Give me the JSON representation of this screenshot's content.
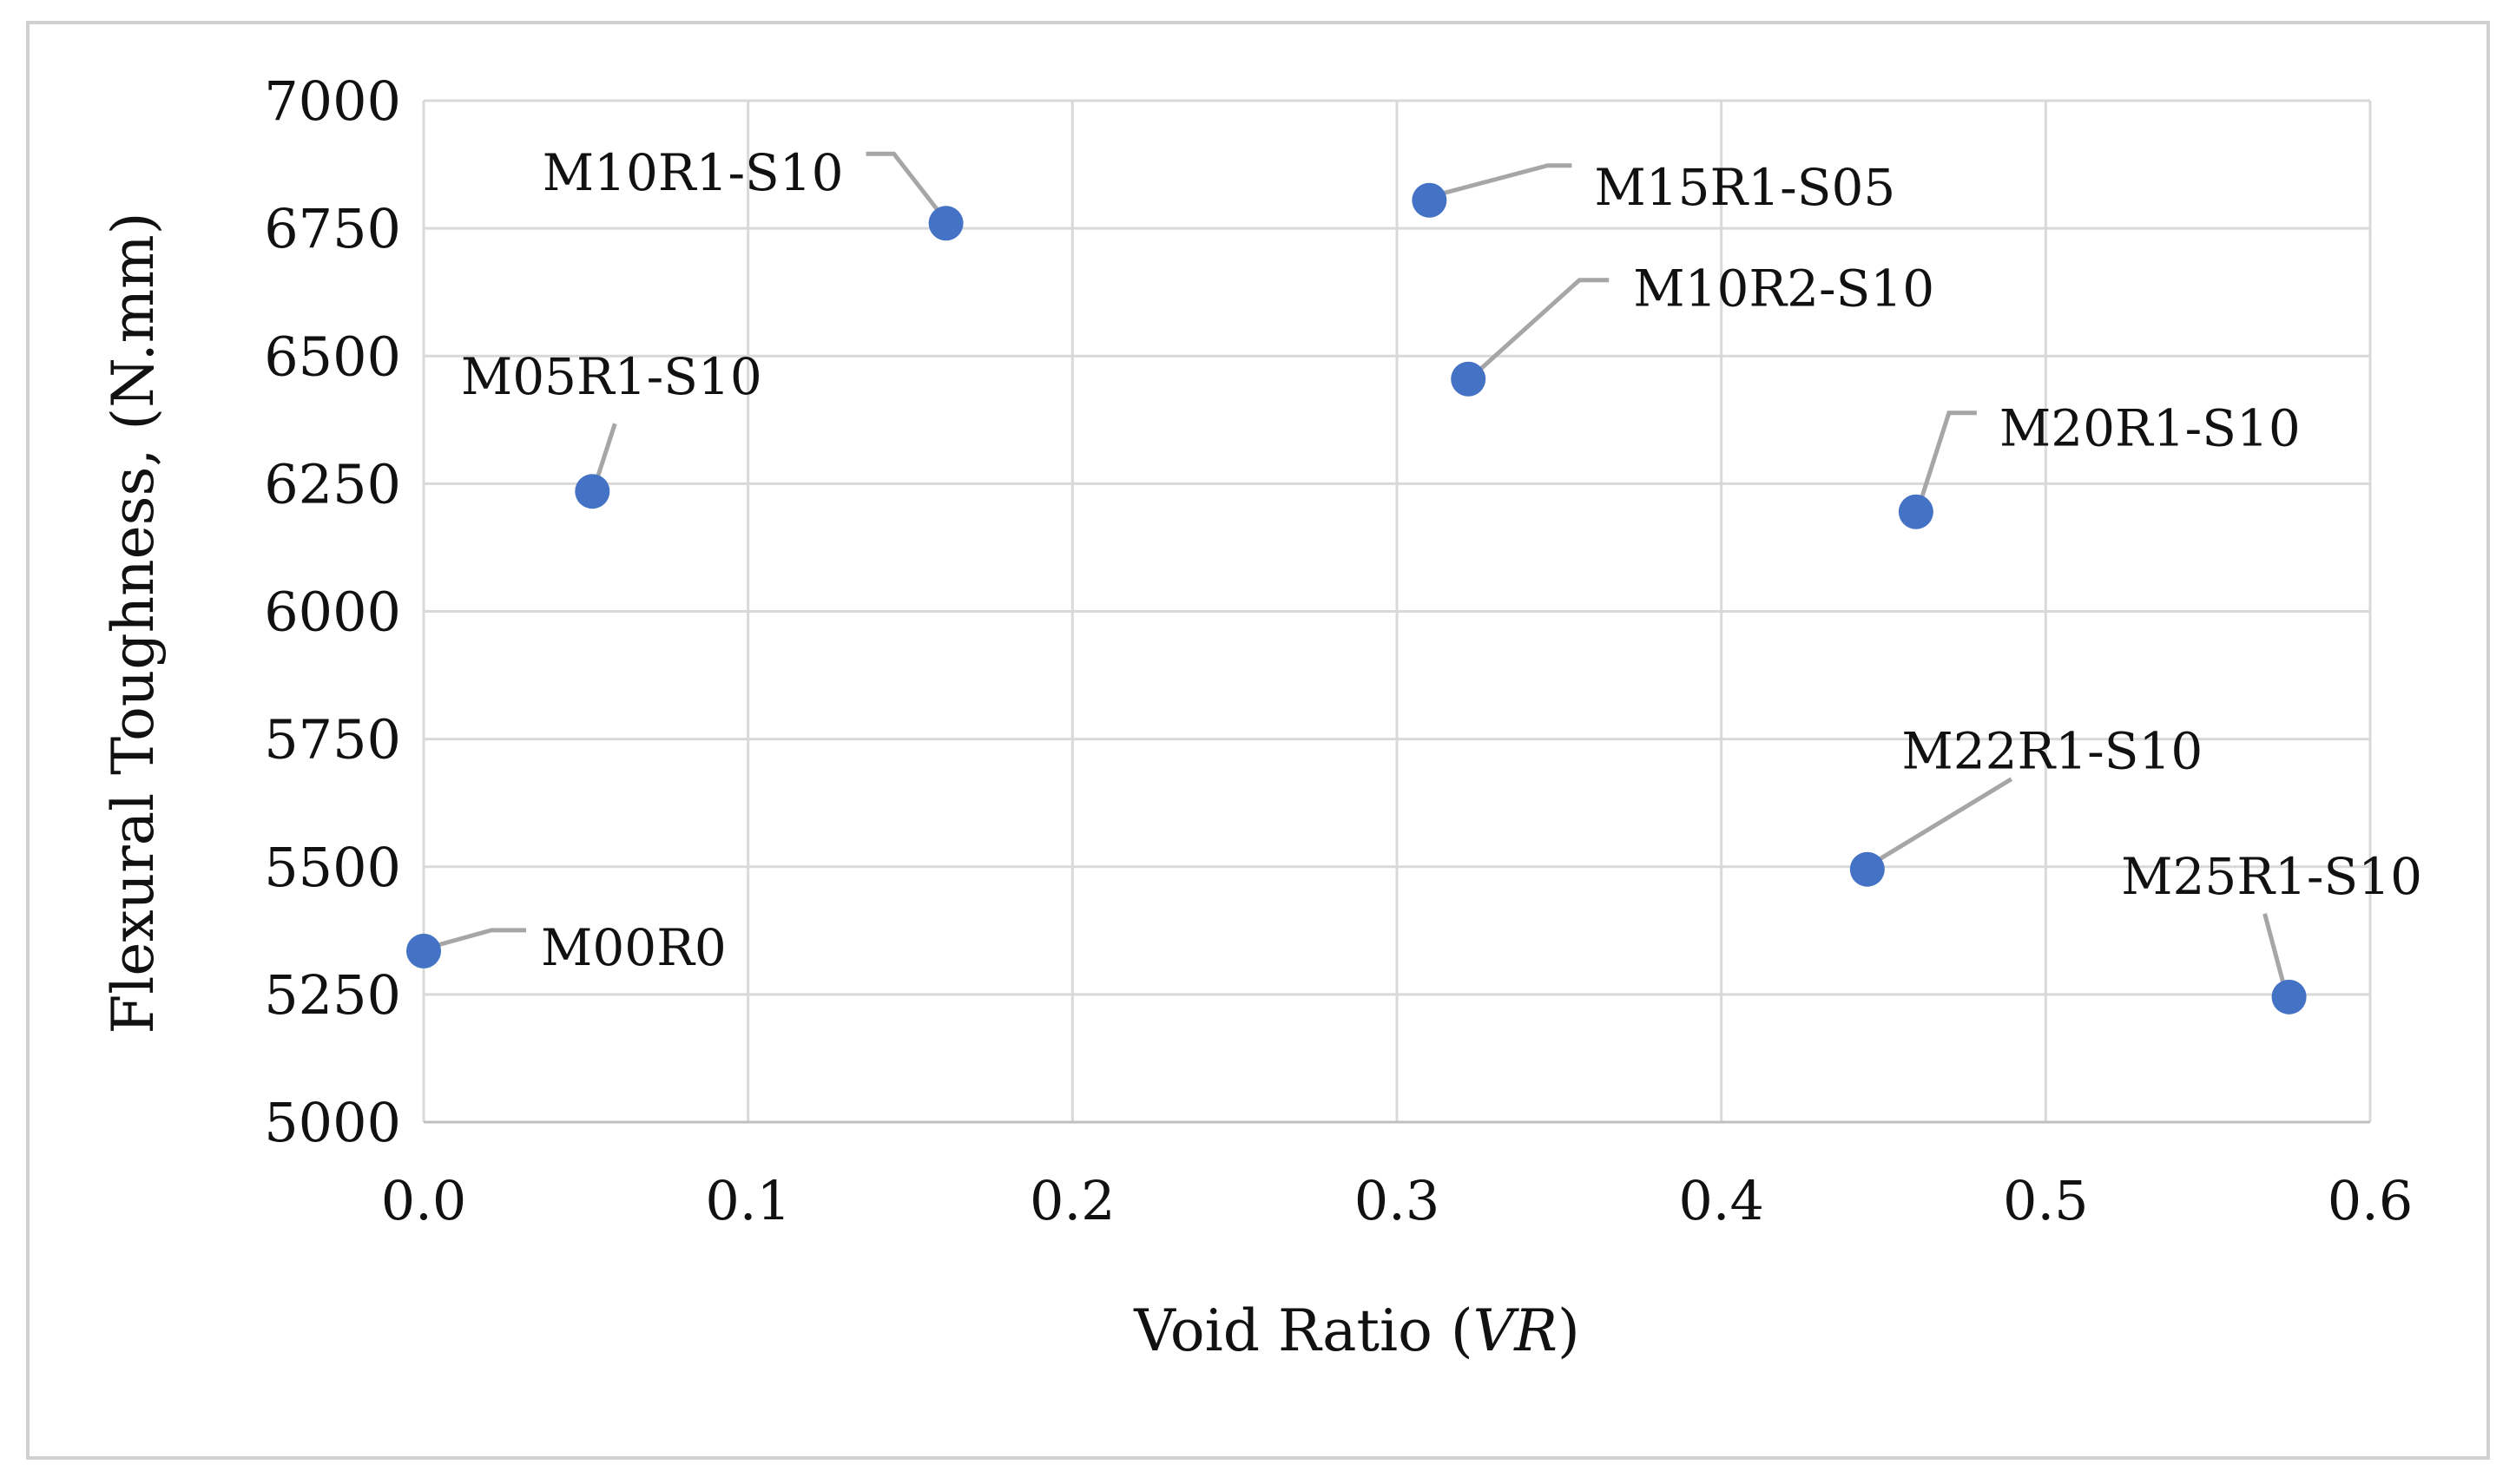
{
  "chart_data": {
    "type": "scatter",
    "title": "",
    "xlabel_prefix": "Void Ratio (",
    "xlabel_italic": "VR",
    "xlabel_suffix": ")",
    "ylabel": "Flexural Toughness, (N.mm)",
    "xlim": [
      0,
      0.6
    ],
    "ylim": [
      5000,
      7000
    ],
    "x_ticks": [
      0.0,
      0.1,
      0.2,
      0.3,
      0.4,
      0.5,
      0.6
    ],
    "x_tick_labels": [
      "0.0",
      "0.1",
      "0.2",
      "0.3",
      "0.4",
      "0.5",
      "0.6"
    ],
    "y_ticks": [
      5000,
      5250,
      5500,
      5750,
      6000,
      6250,
      6500,
      6750,
      7000
    ],
    "y_tick_labels": [
      "5000",
      "5250",
      "5500",
      "5750",
      "6000",
      "6250",
      "6500",
      "6750",
      "7000"
    ],
    "grid": true,
    "marker_color": "#4472C4",
    "leader_color": "#a6a6a6",
    "points": [
      {
        "label": "M00R0",
        "x": 0.0,
        "y": 5335
      },
      {
        "label": "M05R1-S10",
        "x": 0.052,
        "y": 6235
      },
      {
        "label": "M10R1-S10",
        "x": 0.161,
        "y": 6760
      },
      {
        "label": "M15R1-S05",
        "x": 0.31,
        "y": 6805
      },
      {
        "label": "M10R2-S10",
        "x": 0.322,
        "y": 6455
      },
      {
        "label": "M20R1-S10",
        "x": 0.46,
        "y": 6195
      },
      {
        "label": "M22R1-S10",
        "x": 0.445,
        "y": 5495
      },
      {
        "label": "M25R1-S10",
        "x": 0.575,
        "y": 5245
      }
    ]
  }
}
